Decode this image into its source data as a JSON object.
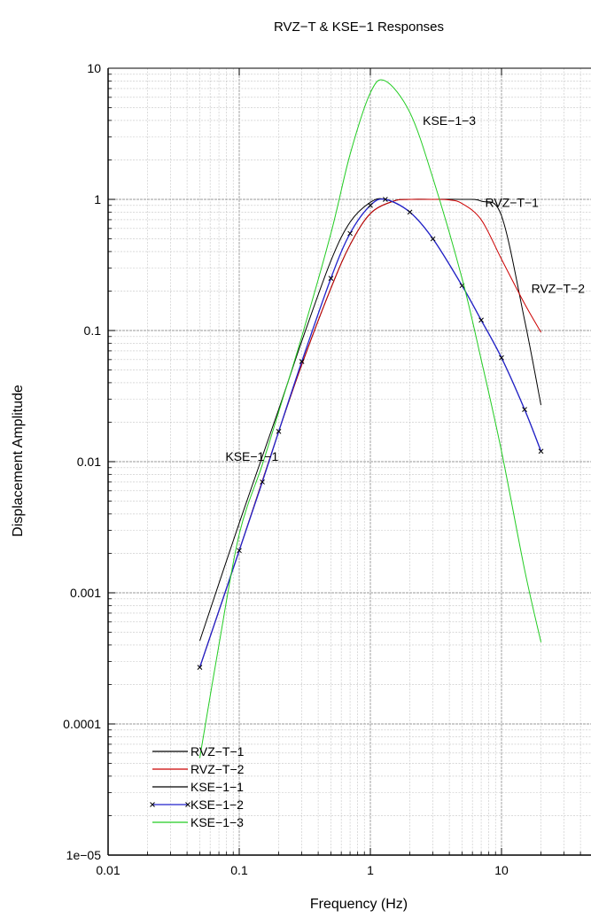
{
  "chart_data": {
    "type": "line",
    "title": "RVZ−T & KSE−1 Responses",
    "xlabel": "Frequency (Hz)",
    "ylabel": "Displacement Amplitude",
    "x_scale": "log",
    "y_scale": "log",
    "xlim": [
      0.01,
      50
    ],
    "ylim": [
      1e-05,
      10
    ],
    "grid": true,
    "legend_position": "bottom-left",
    "x_ticks": [
      {
        "value": 0.01,
        "label": "0.01"
      },
      {
        "value": 0.1,
        "label": "0.1"
      },
      {
        "value": 1,
        "label": "1"
      },
      {
        "value": 10,
        "label": "10"
      }
    ],
    "y_ticks": [
      {
        "value": 10,
        "label": "10"
      },
      {
        "value": 1,
        "label": "1"
      },
      {
        "value": 0.1,
        "label": "0.1"
      },
      {
        "value": 0.01,
        "label": "0.01"
      },
      {
        "value": 0.001,
        "label": "0.001"
      },
      {
        "value": 0.0001,
        "label": "0.0001"
      },
      {
        "value": 1e-05,
        "label": "1e−05"
      }
    ],
    "series": [
      {
        "name": "RVZ−T−1",
        "color": "#000000",
        "marker": "none",
        "x": [
          0.05,
          0.1,
          0.2,
          0.3,
          0.5,
          0.7,
          1.0,
          1.5,
          2.0,
          3.0,
          5.0,
          7.0,
          10.0,
          15.0,
          20.0
        ],
        "y": [
          0.00027,
          0.0021,
          0.017,
          0.055,
          0.21,
          0.45,
          0.78,
          0.97,
          1.0,
          1.0,
          1.0,
          0.97,
          0.75,
          0.12,
          0.027
        ]
      },
      {
        "name": "RVZ−T−2",
        "color": "#cc0000",
        "marker": "none",
        "x": [
          0.05,
          0.1,
          0.2,
          0.3,
          0.5,
          0.7,
          1.0,
          1.5,
          2.0,
          3.0,
          4.0,
          5.0,
          7.0,
          10.0,
          15.0,
          20.0
        ],
        "y": [
          0.00027,
          0.0021,
          0.017,
          0.055,
          0.21,
          0.45,
          0.78,
          0.97,
          1.0,
          1.0,
          0.99,
          0.93,
          0.7,
          0.35,
          0.16,
          0.097
        ]
      },
      {
        "name": "KSE−1−1",
        "color": "#000000",
        "marker": "none",
        "x": [
          0.05,
          0.1,
          0.2,
          0.3,
          0.5,
          0.7,
          1.0,
          1.3,
          2.0,
          3.0,
          5.0,
          7.0,
          10.0,
          15.0,
          20.0
        ],
        "y": [
          0.00043,
          0.0034,
          0.025,
          0.083,
          0.34,
          0.67,
          0.95,
          1.0,
          0.8,
          0.5,
          0.22,
          0.12,
          0.062,
          0.025,
          0.012
        ]
      },
      {
        "name": "KSE−1−2",
        "color": "#2222cc",
        "marker": "x",
        "x": [
          0.05,
          0.1,
          0.15,
          0.2,
          0.3,
          0.5,
          0.7,
          1.0,
          1.3,
          2.0,
          3.0,
          5.0,
          7.0,
          10.0,
          15.0,
          20.0
        ],
        "y": [
          0.00027,
          0.0021,
          0.007,
          0.017,
          0.058,
          0.25,
          0.55,
          0.9,
          1.0,
          0.8,
          0.5,
          0.22,
          0.12,
          0.062,
          0.025,
          0.012
        ]
      },
      {
        "name": "KSE−1−3",
        "color": "#22cc22",
        "marker": "none",
        "x": [
          0.05,
          0.07,
          0.1,
          0.15,
          0.2,
          0.3,
          0.5,
          0.7,
          1.0,
          1.3,
          2.0,
          3.0,
          5.0,
          7.0,
          10.0,
          15.0,
          20.0
        ],
        "y": [
          5.5e-05,
          0.0004,
          0.0028,
          0.0095,
          0.024,
          0.09,
          0.55,
          2.2,
          6.5,
          8.0,
          4.6,
          1.45,
          0.25,
          0.06,
          0.012,
          0.0015,
          0.00042
        ]
      }
    ],
    "annotations": [
      {
        "text": "KSE−1−3",
        "x": 4.0,
        "y": 4.0
      },
      {
        "text": "RVZ−T−1",
        "x": 12.0,
        "y": 0.95
      },
      {
        "text": "RVZ−T−2",
        "x": 27.0,
        "y": 0.21
      },
      {
        "text": "KSE−1−1",
        "x": 0.125,
        "y": 0.011
      }
    ]
  }
}
